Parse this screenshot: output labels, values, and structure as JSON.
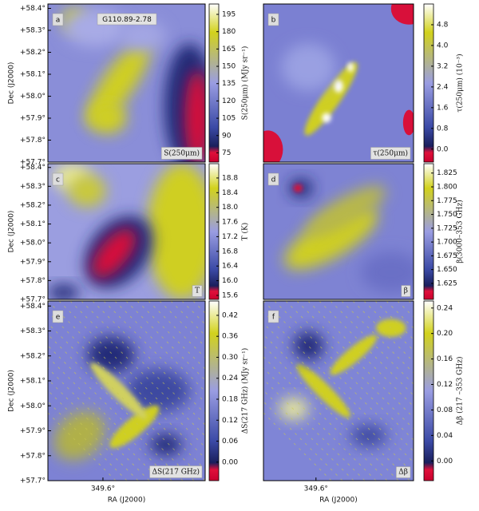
{
  "chart_data": [
    {
      "type": "heatmap",
      "panel": "a",
      "title": "G110.89-2.78",
      "label": "S(250μm)",
      "colorbar_label": "S(250μm) (MJy sr⁻¹)",
      "clim": [
        67,
        204
      ],
      "cticks": [
        75,
        90,
        105,
        120,
        135,
        150,
        165,
        180,
        195
      ],
      "ylabel": "Dec (J2000)",
      "ylim": [
        57.7,
        58.42
      ],
      "yticks": [
        {
          "value": 58.4,
          "label": "+58.4°"
        },
        {
          "value": 58.3,
          "label": "+58.3°"
        },
        {
          "value": 58.2,
          "label": "+58.2°"
        },
        {
          "value": 58.1,
          "label": "+58.1°"
        },
        {
          "value": 58.0,
          "label": "+58.0°"
        },
        {
          "value": 57.9,
          "label": "+57.9°"
        },
        {
          "value": 57.8,
          "label": "+57.8°"
        },
        {
          "value": 57.7,
          "label": "+57.7°"
        }
      ]
    },
    {
      "type": "heatmap",
      "panel": "b",
      "label": "τ(250μm)",
      "colorbar_label": "τ(250μm) (10⁻³)",
      "clim": [
        -0.5,
        5.6
      ],
      "cticks": [
        {
          "value": 0,
          "label": "0.0"
        },
        0.8,
        1.6,
        2.4,
        3.2,
        {
          "value": 4,
          "label": "4.0"
        },
        4.8
      ]
    },
    {
      "type": "heatmap",
      "panel": "c",
      "label": "T",
      "colorbar_label": "T (K)",
      "clim": [
        15.49,
        19.19
      ],
      "cticks": [
        15.6,
        {
          "value": 16,
          "label": "16.0"
        },
        16.4,
        16.8,
        17.2,
        17.6,
        {
          "value": 18,
          "label": "18.0"
        },
        18.4,
        18.8
      ],
      "ylabel": "Dec (J2000)",
      "ylim": [
        57.7,
        58.42
      ],
      "yticks": [
        {
          "value": 58.4,
          "label": "+58.4°"
        },
        {
          "value": 58.3,
          "label": "+58.3°"
        },
        {
          "value": 58.2,
          "label": "+58.2°"
        },
        {
          "value": 58.1,
          "label": "+58.1°"
        },
        {
          "value": 58.0,
          "label": "+58.0°"
        },
        {
          "value": 57.9,
          "label": "+57.9°"
        },
        {
          "value": 57.8,
          "label": "+57.8°"
        },
        {
          "value": 57.7,
          "label": "+57.7°"
        }
      ]
    },
    {
      "type": "heatmap",
      "panel": "d",
      "label": "β",
      "colorbar_label": "β(3000–353 GHz)",
      "clim": [
        1.596,
        1.842
      ],
      "cticks": [
        1.625,
        {
          "value": 1.65,
          "label": "1.650"
        },
        1.675,
        {
          "value": 1.7,
          "label": "1.700"
        },
        1.725,
        {
          "value": 1.75,
          "label": "1.750"
        },
        1.775,
        {
          "value": 1.8,
          "label": "1.800"
        },
        1.825
      ]
    },
    {
      "type": "heatmap",
      "panel": "e",
      "label": "ΔS(217 GHz)",
      "colorbar_label": "ΔS(217 GHz) (MJy sr⁻¹)",
      "clim": [
        -0.053,
        0.461
      ],
      "cticks": [
        {
          "value": 0,
          "label": "0.00"
        },
        0.06,
        0.12,
        0.18,
        0.24,
        {
          "value": 0.3,
          "label": "0.30"
        },
        0.36,
        0.42
      ],
      "ylabel": "Dec (J2000)",
      "ylim": [
        57.7,
        58.42
      ],
      "yticks": [
        {
          "value": 58.4,
          "label": "+58.4°"
        },
        {
          "value": 58.3,
          "label": "+58.3°"
        },
        {
          "value": 58.2,
          "label": "+58.2°"
        },
        {
          "value": 58.1,
          "label": "+58.1°"
        },
        {
          "value": 58.0,
          "label": "+58.0°"
        },
        {
          "value": 57.9,
          "label": "+57.9°"
        },
        {
          "value": 57.8,
          "label": "+57.8°"
        },
        {
          "value": 57.7,
          "label": "+57.7°"
        }
      ],
      "xlabel": "RA (J2000)",
      "xlim": [
        349.67,
        349.47
      ],
      "xticks": [
        {
          "value": 349.6,
          "label": "349.6°"
        }
      ]
    },
    {
      "type": "heatmap",
      "panel": "f",
      "label": "Δβ",
      "colorbar_label": "Δβ (217 –353 GHz)",
      "clim": [
        -0.031,
        0.251
      ],
      "cticks": [
        {
          "value": 0,
          "label": "0.00"
        },
        0.04,
        0.08,
        0.12,
        0.16,
        {
          "value": 0.2,
          "label": "0.20"
        },
        0.24
      ],
      "xlabel": "RA (J2000)",
      "xlim": [
        349.67,
        349.47
      ],
      "xticks": [
        {
          "value": 349.6,
          "label": "349.6°"
        }
      ]
    }
  ]
}
